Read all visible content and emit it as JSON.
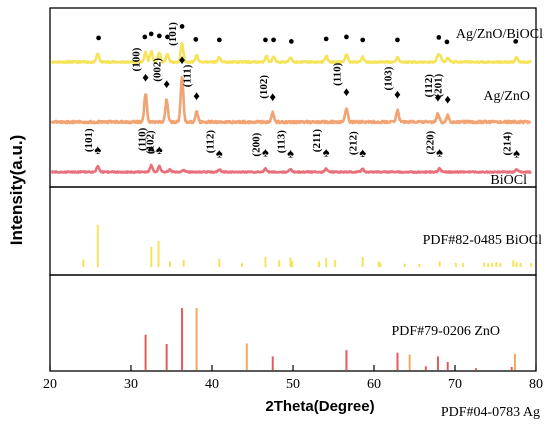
{
  "chart_data": {
    "type": "line",
    "xlabel": "2Theta(Degree)",
    "ylabel": "Intensity(a.u.)",
    "xlim": [
      20,
      80
    ],
    "x_ticks": [
      20,
      30,
      40,
      50,
      60,
      70,
      80
    ],
    "grid": false,
    "panels": [
      {
        "series": [
          {
            "name": "Ag/ZnO/BiOCl",
            "color": "#f5e35a",
            "peaks": [
              [
                25.9,
                0.28
              ],
              [
                31.8,
                0.32
              ],
              [
                32.5,
                0.36
              ],
              [
                33.5,
                0.3
              ],
              [
                34.5,
                0.26
              ],
              [
                36.3,
                0.62
              ],
              [
                38.1,
                0.22
              ],
              [
                40.9,
                0.16
              ],
              [
                46.7,
                0.2
              ],
              [
                47.6,
                0.16
              ],
              [
                49.7,
                0.15
              ],
              [
                54.1,
                0.2
              ],
              [
                56.6,
                0.26
              ],
              [
                58.6,
                0.16
              ],
              [
                62.9,
                0.16
              ],
              [
                67.9,
                0.2
              ],
              [
                68.2,
                0.17
              ],
              [
                69.1,
                0.13
              ],
              [
                77.6,
                0.15
              ]
            ],
            "markers": [
              {
                "symbol": "●",
                "x": 26.0
              },
              {
                "symbol": "●",
                "x": 31.7
              },
              {
                "symbol": "●",
                "x": 32.5
              },
              {
                "symbol": "●",
                "x": 33.5
              },
              {
                "symbol": "●",
                "x": 34.5
              },
              {
                "symbol": "●",
                "x": 36.3
              },
              {
                "symbol": "●",
                "x": 38.0
              },
              {
                "symbol": "●",
                "x": 40.9
              },
              {
                "symbol": "●",
                "x": 46.6
              },
              {
                "symbol": "●",
                "x": 47.6
              },
              {
                "symbol": "●",
                "x": 49.8
              },
              {
                "symbol": "●",
                "x": 54.1
              },
              {
                "symbol": "●",
                "x": 56.6
              },
              {
                "symbol": "●",
                "x": 58.6
              },
              {
                "symbol": "●",
                "x": 62.9
              },
              {
                "symbol": "●",
                "x": 68.0
              },
              {
                "symbol": "●",
                "x": 69.0
              },
              {
                "symbol": "●",
                "x": 77.5
              }
            ]
          },
          {
            "name": "Ag/ZnO",
            "color": "#f2a373",
            "peaks": [
              [
                31.8,
                0.62
              ],
              [
                34.4,
                0.48
              ],
              [
                36.3,
                1.0
              ],
              [
                38.1,
                0.22
              ],
              [
                47.5,
                0.2
              ],
              [
                56.6,
                0.3
              ],
              [
                62.9,
                0.25
              ],
              [
                67.9,
                0.18
              ],
              [
                69.1,
                0.14
              ]
            ],
            "markers": [
              {
                "symbol": "♦",
                "x": 31.8,
                "hkl": "(100)"
              },
              {
                "symbol": "♦",
                "x": 34.4,
                "hkl": "(002)"
              },
              {
                "symbol": "♦",
                "x": 36.3,
                "hkl": "(101)"
              },
              {
                "symbol": "♦",
                "x": 38.1,
                "hkl": "(111)"
              },
              {
                "symbol": "♦",
                "x": 47.5,
                "hkl": "(102)"
              },
              {
                "symbol": "♦",
                "x": 56.6,
                "hkl": "(110)"
              },
              {
                "symbol": "♦",
                "x": 62.9,
                "hkl": "(103)"
              },
              {
                "symbol": "♦",
                "x": 67.9,
                "hkl": "(112)"
              },
              {
                "symbol": "♦",
                "x": 69.1,
                "hkl": "(201)"
              }
            ]
          },
          {
            "name": "BiOCl",
            "color": "#e8707a",
            "peaks": [
              [
                25.9,
                0.24
              ],
              [
                32.5,
                0.28
              ],
              [
                33.5,
                0.24
              ],
              [
                34.8,
                0.1
              ],
              [
                36.5,
                0.08
              ],
              [
                40.9,
                0.1
              ],
              [
                46.6,
                0.14
              ],
              [
                49.7,
                0.1
              ],
              [
                54.1,
                0.14
              ],
              [
                58.6,
                0.12
              ],
              [
                68.1,
                0.14
              ],
              [
                77.6,
                0.1
              ]
            ],
            "markers": [
              {
                "symbol": "♠",
                "x": 25.9,
                "hkl": "(101)"
              },
              {
                "symbol": "♠",
                "x": 32.5,
                "hkl": "(110)"
              },
              {
                "symbol": "♠",
                "x": 33.5,
                "hkl": "(102)"
              },
              {
                "symbol": "♠",
                "x": 40.9,
                "hkl": "(112)"
              },
              {
                "symbol": "♠",
                "x": 46.6,
                "hkl": "(200)"
              },
              {
                "symbol": "♠",
                "x": 49.7,
                "hkl": "(113)"
              },
              {
                "symbol": "♠",
                "x": 54.1,
                "hkl": "(211)"
              },
              {
                "symbol": "♠",
                "x": 58.6,
                "hkl": "(212)"
              },
              {
                "symbol": "♠",
                "x": 68.1,
                "hkl": "(220)"
              },
              {
                "symbol": "♠",
                "x": 77.6,
                "hkl": "(214)"
              }
            ]
          }
        ]
      },
      {
        "reference_sets": [
          {
            "name": "PDF#82-0485 BiOCl",
            "color": "#f5e35a",
            "sticks": [
              [
                24.1,
                0.18
              ],
              [
                25.9,
                1.0
              ],
              [
                32.5,
                0.48
              ],
              [
                33.4,
                0.62
              ],
              [
                34.8,
                0.14
              ],
              [
                36.5,
                0.17
              ],
              [
                40.9,
                0.2
              ],
              [
                43.7,
                0.09
              ],
              [
                46.6,
                0.24
              ],
              [
                48.3,
                0.16
              ],
              [
                49.7,
                0.22
              ],
              [
                49.9,
                0.14
              ],
              [
                53.2,
                0.14
              ],
              [
                54.1,
                0.22
              ],
              [
                55.2,
                0.17
              ],
              [
                58.6,
                0.24
              ],
              [
                60.6,
                0.13
              ],
              [
                60.8,
                0.1
              ],
              [
                63.8,
                0.08
              ],
              [
                65.6,
                0.07
              ],
              [
                68.1,
                0.14
              ],
              [
                70.1,
                0.1
              ],
              [
                71.0,
                0.1
              ],
              [
                73.6,
                0.11
              ],
              [
                74.1,
                0.09
              ],
              [
                74.6,
                0.1
              ],
              [
                75.1,
                0.12
              ],
              [
                75.6,
                0.09
              ],
              [
                77.2,
                0.16
              ],
              [
                77.6,
                0.12
              ],
              [
                78.1,
                0.1
              ],
              [
                79.4,
                0.09
              ]
            ]
          }
        ]
      },
      {
        "reference_sets": [
          {
            "name": "PDF#79-0206 ZnO",
            "color": "#e85a5a",
            "sticks": [
              [
                31.8,
                0.57
              ],
              [
                34.4,
                0.42
              ],
              [
                36.3,
                1.0
              ],
              [
                47.5,
                0.22
              ],
              [
                56.6,
                0.32
              ],
              [
                62.9,
                0.28
              ],
              [
                66.4,
                0.06
              ],
              [
                67.9,
                0.22
              ],
              [
                69.1,
                0.13
              ],
              [
                72.6,
                0.03
              ],
              [
                77.0,
                0.05
              ]
            ]
          },
          {
            "name": "PDF#04-0783 Ag",
            "color": "#f4a860",
            "sticks": [
              [
                38.1,
                1.0
              ],
              [
                44.3,
                0.43
              ],
              [
                64.4,
                0.25
              ],
              [
                77.4,
                0.26
              ]
            ]
          }
        ]
      }
    ]
  }
}
